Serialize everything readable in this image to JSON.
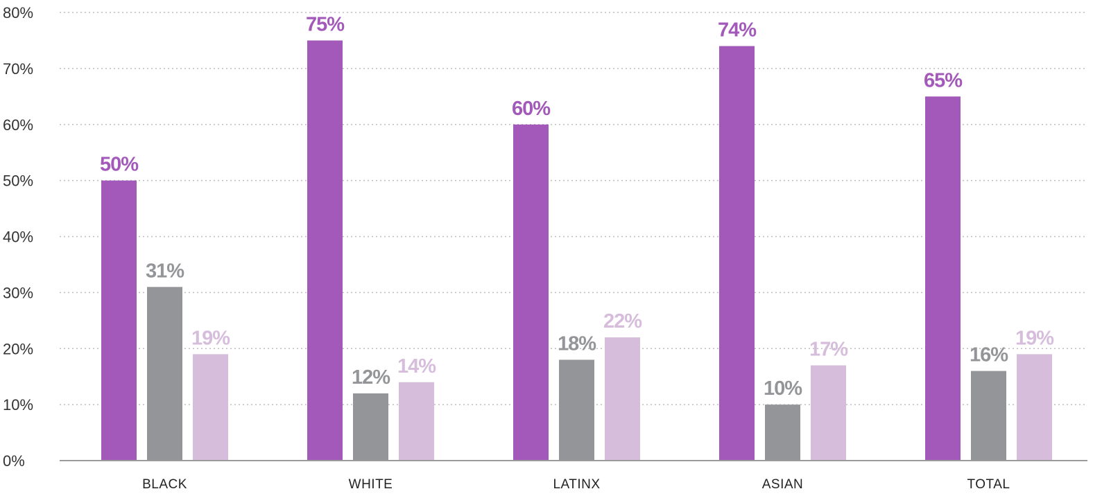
{
  "colors": {
    "series_0": "#a259b9",
    "series_1": "#939598",
    "series_2": "#d6bddb",
    "grid": "#bdbdbd",
    "axis": "#9a9a9a"
  },
  "chart_data": {
    "type": "bar",
    "title": "",
    "xlabel": "",
    "ylabel": "",
    "categories": [
      "BLACK",
      "WHITE",
      "LATINX",
      "ASIAN",
      "TOTAL"
    ],
    "series": [
      {
        "values": [
          50,
          75,
          60,
          74,
          65
        ],
        "labels": [
          "50%",
          "75%",
          "60%",
          "74%",
          "65%"
        ]
      },
      {
        "values": [
          31,
          12,
          18,
          10,
          16
        ],
        "labels": [
          "31%",
          "12%",
          "18%",
          "10%",
          "16%"
        ]
      },
      {
        "values": [
          19,
          14,
          22,
          17,
          19
        ],
        "labels": [
          "19%",
          "14%",
          "22%",
          "17%",
          "19%"
        ]
      }
    ],
    "ylim": [
      0,
      80
    ],
    "yticks": [
      0,
      10,
      20,
      30,
      40,
      50,
      60,
      70,
      80
    ],
    "ytick_labels": [
      "0%",
      "10%",
      "20%",
      "30%",
      "40%",
      "50%",
      "60%",
      "70%",
      "80%"
    ],
    "grid": true,
    "legend": "none"
  }
}
